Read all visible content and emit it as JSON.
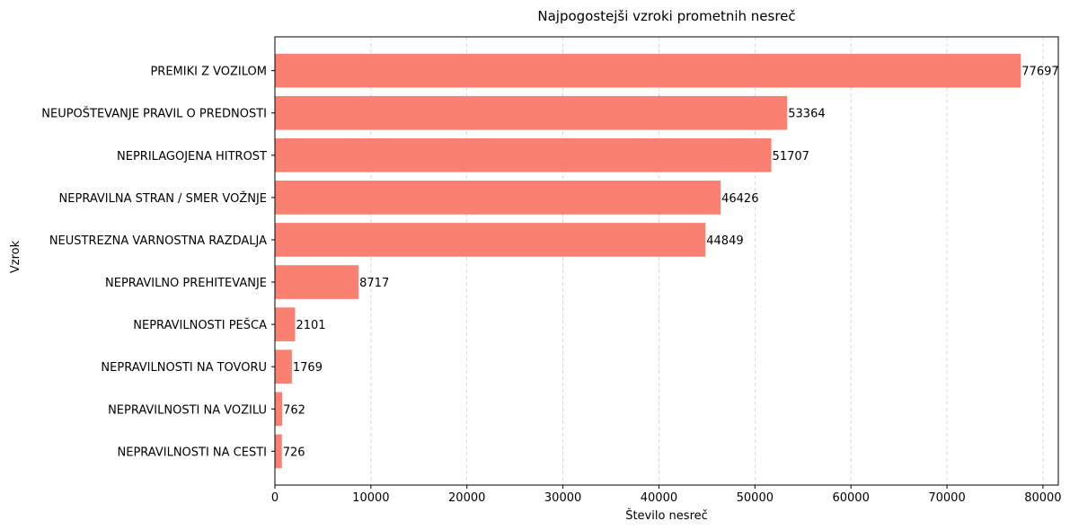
{
  "chart_data": {
    "type": "bar",
    "orientation": "horizontal",
    "title": "Najpogostejši vzroki prometnih nesreč",
    "xlabel": "Število nesreč",
    "ylabel": "Vzrok",
    "categories": [
      "PREMIKI Z VOZILOM",
      "NEUPOŠTEVANJE PRAVIL O PREDNOSTI",
      "NEPRILAGOJENA HITROST",
      "NEPRAVILNA STRAN / SMER VOŽNJE",
      "NEUSTREZNA VARNOSTNA RAZDALJA",
      "NEPRAVILNO PREHITEVANJE",
      "NEPRAVILNOSTI PEŠCA",
      "NEPRAVILNOSTI NA TOVORU",
      "NEPRAVILNOSTI NA VOZILU",
      "NEPRAVILNOSTI NA CESTI"
    ],
    "values": [
      77697,
      53364,
      51707,
      46426,
      44849,
      8717,
      2101,
      1769,
      762,
      726
    ],
    "xlim": [
      0,
      81600
    ],
    "xticks": [
      0,
      10000,
      20000,
      30000,
      40000,
      50000,
      60000,
      70000,
      80000
    ],
    "grid": "x dashed",
    "bar_color": "#fa8072"
  }
}
